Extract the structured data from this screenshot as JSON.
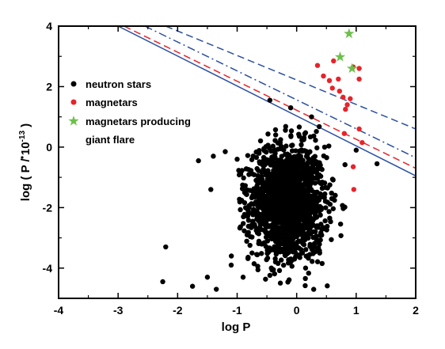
{
  "chart_data": {
    "type": "scatter",
    "xlabel": "log P",
    "ylabel_prefix": "log ( ",
    "ylabel_pdot": "P",
    "ylabel_mid": " / 10",
    "ylabel_exp": "-13",
    "ylabel_suffix": " )",
    "xlim": [
      -4,
      2
    ],
    "ylim": [
      -5,
      4
    ],
    "xticks": [
      -4,
      -3,
      -2,
      -1,
      0,
      1,
      2
    ],
    "yticks": [
      -4,
      -2,
      0,
      2,
      4
    ],
    "grid": false,
    "legend_position": "upper-left",
    "legend": [
      {
        "label": "neutron stars",
        "marker": "dot",
        "color": "#000000"
      },
      {
        "label": "magnetars",
        "marker": "dot",
        "color": "#e8232a"
      },
      {
        "label": "magnetars producing",
        "marker": "star",
        "color": "#6cc04a"
      },
      {
        "label": "giant flare",
        "marker": "none",
        "color": "#000000"
      }
    ],
    "series": [
      {
        "marker": "dot",
        "color": "#000000",
        "points": [
          [
            -0.45,
            1.55
          ],
          [
            -0.1,
            1.3
          ],
          [
            0.25,
            1.0
          ],
          [
            1.0,
            -0.1
          ],
          [
            1.35,
            -0.55
          ],
          [
            -0.55,
            -0.05
          ],
          [
            -1.65,
            -0.45
          ],
          [
            -1.2,
            -0.15
          ],
          [
            -1.0,
            -0.4
          ],
          [
            -1.4,
            -0.3
          ],
          [
            -2.2,
            -3.3
          ],
          [
            -2.25,
            -4.45
          ],
          [
            -1.35,
            -4.7
          ],
          [
            -1.75,
            -4.6
          ],
          [
            -0.9,
            -4.3
          ],
          [
            -1.1,
            -3.9
          ],
          [
            -1.5,
            -4.3
          ],
          [
            -0.75,
            -3.5
          ]
        ],
        "cluster": {
          "count": 1600,
          "center": [
            -0.15,
            -1.85
          ],
          "spread": [
            0.32,
            0.95
          ]
        }
      },
      {
        "marker": "dot",
        "color": "#e8232a",
        "points": [
          [
            0.35,
            2.7
          ],
          [
            0.45,
            2.35
          ],
          [
            0.55,
            2.2
          ],
          [
            0.6,
            1.95
          ],
          [
            0.7,
            2.25
          ],
          [
            0.72,
            1.85
          ],
          [
            0.78,
            1.65
          ],
          [
            0.85,
            1.4
          ],
          [
            0.82,
            1.25
          ],
          [
            0.9,
            1.6
          ],
          [
            0.95,
            2.65
          ],
          [
            1.05,
            2.6
          ],
          [
            1.05,
            2.25
          ],
          [
            0.62,
            2.85
          ],
          [
            0.95,
            -0.65
          ],
          [
            0.96,
            -1.4
          ],
          [
            1.05,
            0.6
          ],
          [
            1.1,
            0.15
          ],
          [
            0.8,
            0.45
          ]
        ]
      },
      {
        "marker": "star",
        "color": "#6cc04a",
        "points": [
          [
            0.88,
            3.75
          ],
          [
            0.73,
            2.98
          ],
          [
            0.93,
            2.6
          ]
        ]
      }
    ],
    "lines": [
      {
        "style": "solid",
        "color": "#2b4fa2",
        "from": [
          -3.0,
          4.0
        ],
        "to": [
          2.0,
          -0.95
        ]
      },
      {
        "style": "dash",
        "color": "#e8232a",
        "from": [
          -2.9,
          4.0
        ],
        "to": [
          2.0,
          -0.7
        ]
      },
      {
        "style": "dashdot",
        "color": "#2b4fa2",
        "from": [
          -2.55,
          4.0
        ],
        "to": [
          2.0,
          -0.35
        ]
      },
      {
        "style": "dash",
        "color": "#2b4fa2",
        "from": [
          -2.2,
          4.0
        ],
        "to": [
          2.0,
          0.6
        ]
      }
    ]
  }
}
